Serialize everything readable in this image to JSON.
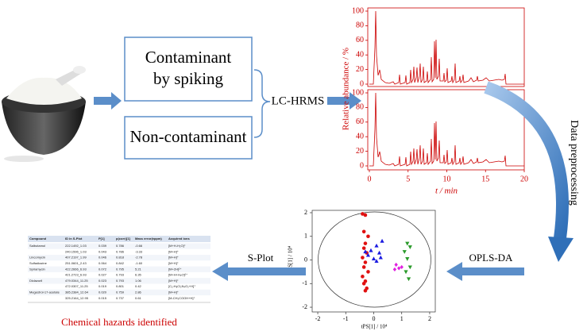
{
  "boxes": [
    {
      "lines": [
        "Contaminant",
        "by spiking"
      ]
    },
    {
      "lines": [
        "Non-contaminant"
      ]
    }
  ],
  "technique": "LC-HRMS",
  "chromatogram": {
    "ylabel": "Relative abundance / %",
    "xlabel": "t / min",
    "yticks": [
      0,
      20,
      40,
      60,
      80,
      100
    ],
    "xticks": [
      0,
      5,
      10,
      15,
      20
    ],
    "ylim": [
      0,
      100
    ],
    "xlim": [
      0,
      20
    ]
  },
  "step": "Data preprocessing",
  "method": "OPLS-DA",
  "scatter": {
    "ylabel": "toPS[1] / 10⁴",
    "xlabel": "tPS[1] / 10⁴",
    "xlim": [
      -2.2,
      2.2
    ],
    "ylim": [
      -2.2,
      2.1
    ],
    "xticks": [
      -2,
      -1,
      0,
      1,
      2
    ],
    "yticks": [
      2,
      1,
      0,
      -1,
      -2
    ],
    "series": [
      {
        "marker": "circle",
        "color": "#e01010",
        "x": [
          -0.4,
          -0.3,
          -0.35,
          -0.2,
          -0.3,
          -0.35,
          -0.25,
          -0.4,
          -0.3,
          -0.35,
          -0.2,
          -0.4,
          -0.3,
          -0.35,
          -0.25,
          -0.3
        ],
        "y": [
          1.95,
          1.9,
          1.2,
          1.0,
          0.7,
          0.5,
          0.3,
          0.1,
          -0.1,
          -0.3,
          -0.5,
          -0.7,
          -0.9,
          -1.0,
          -1.2,
          -1.3
        ]
      },
      {
        "marker": "triangle",
        "color": "#1a1ae0",
        "x": [
          0.3,
          0.1,
          -0.1,
          0.2,
          -0.2,
          0.0,
          0.1,
          -0.3,
          0.25
        ],
        "y": [
          0.8,
          0.6,
          0.4,
          0.3,
          0.2,
          0.05,
          -0.05,
          0.35,
          0.1
        ]
      },
      {
        "marker": "triangle-down",
        "color": "#2a9a2a",
        "x": [
          1.2,
          1.3,
          1.1,
          1.2,
          1.3,
          1.15,
          1.25
        ],
        "y": [
          0.7,
          0.55,
          0.35,
          0.05,
          -0.3,
          -0.5,
          -0.8
        ]
      },
      {
        "marker": "diamond",
        "color": "#e020e0",
        "x": [
          0.8,
          0.9,
          0.75,
          1.0
        ],
        "y": [
          -0.2,
          -0.35,
          -0.4,
          -0.3
        ]
      }
    ]
  },
  "plot_name": "S-Plot",
  "table": {
    "header": [
      "Compound",
      "ID in S-Plot",
      "P[1]",
      "p(corr)[1]",
      "Mass error(±ppm)",
      "Acquired ions"
    ],
    "rows": [
      [
        "Salbutamol",
        "222.1492_1.03",
        "0.039",
        "0.786",
        "-0.66",
        "[M+H-H₂O]⁺"
      ],
      [
        null,
        "240.1596_1.03",
        "0.043",
        "0.786",
        "-3.33",
        "[M+H]⁺"
      ],
      [
        "Lincomycin",
        "407.2197_1.99",
        "0.046",
        "0.818",
        "-2.78",
        "[M+H]⁺"
      ],
      [
        "Sulfadiazine",
        "251.0601_2.43",
        "0.064",
        "0.842",
        "-1.60",
        "[M+H]⁺"
      ],
      [
        "Spiramycin",
        "422.2666_6.93",
        "0.072",
        "0.795",
        "5.21",
        "[M+2H]²⁺"
      ],
      [
        null,
        "421.2723_6.93",
        "0.027",
        "0.793",
        "6.35",
        "[M+H+H₂O]²⁺"
      ],
      [
        "Diclazuril",
        "479.0344_11.25",
        "0.023",
        "0.793",
        "1.06",
        "[M+H]⁺"
      ],
      [
        null,
        "472.0307_11.25",
        "0.019",
        "0.801",
        "0.42",
        "[C₁₇H₈Cl₂N₄O₂+H]⁺"
      ],
      [
        "Megestrol-17-acetate",
        "385.2384_12.64",
        "0.020",
        "0.759",
        "2.86",
        "[M+H]⁺"
      ],
      [
        null,
        "325.2164_12.95",
        "0.015",
        "0.737",
        "0.61",
        "[M-CH₃COOH+H]⁺"
      ]
    ]
  },
  "result": "Chemical hazards identified"
}
